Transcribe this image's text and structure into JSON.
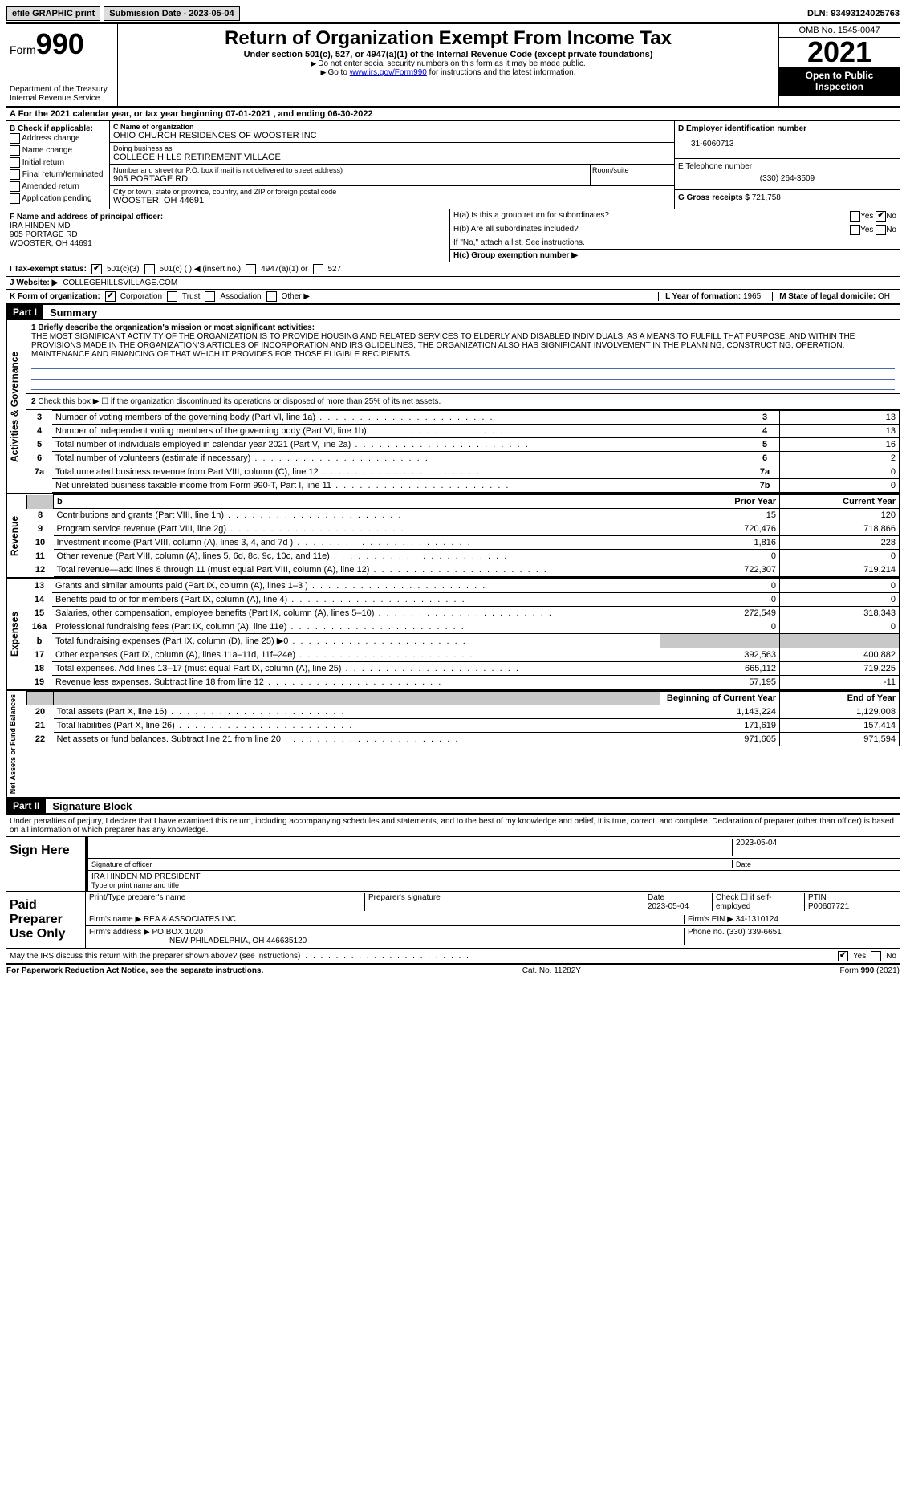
{
  "top": {
    "efile": "efile GRAPHIC print",
    "submission_label": "Submission Date - 2023-05-04",
    "dln": "DLN: 93493124025763"
  },
  "header": {
    "form_label": "Form",
    "form_no": "990",
    "dept": "Department of the Treasury",
    "irs": "Internal Revenue Service",
    "title": "Return of Organization Exempt From Income Tax",
    "subtitle": "Under section 501(c), 527, or 4947(a)(1) of the Internal Revenue Code (except private foundations)",
    "note1": "Do not enter social security numbers on this form as it may be made public.",
    "note2_pre": "Go to ",
    "note2_link": "www.irs.gov/Form990",
    "note2_post": " for instructions and the latest information.",
    "omb": "OMB No. 1545-0047",
    "year": "2021",
    "open": "Open to Public Inspection"
  },
  "row_a": "A For the 2021 calendar year, or tax year beginning 07-01-2021    , and ending 06-30-2022",
  "col_b": {
    "label": "B Check if applicable:",
    "opts": [
      "Address change",
      "Name change",
      "Initial return",
      "Final return/terminated",
      "Amended return",
      "Application pending"
    ]
  },
  "col_c": {
    "name_label": "C Name of organization",
    "name": "OHIO CHURCH RESIDENCES OF WOOSTER INC",
    "dba_label": "Doing business as",
    "dba": "COLLEGE HILLS RETIREMENT VILLAGE",
    "street_label": "Number and street (or P.O. box if mail is not delivered to street address)",
    "street": "905 PORTAGE RD",
    "room_label": "Room/suite",
    "city_label": "City or town, state or province, country, and ZIP or foreign postal code",
    "city": "WOOSTER, OH  44691"
  },
  "col_d": {
    "ein_label": "D Employer identification number",
    "ein": "31-6060713",
    "phone_label": "E Telephone number",
    "phone": "(330) 264-3509",
    "gross_label": "G Gross receipts $",
    "gross": "721,758"
  },
  "section_f": {
    "label": "F  Name and address of principal officer:",
    "name": "IRA HINDEN MD",
    "street": "905 PORTAGE RD",
    "city": "WOOSTER, OH  44691"
  },
  "section_h": {
    "ha": "H(a)  Is this a group return for subordinates?",
    "hb": "H(b)  Are all subordinates included?",
    "hb_note": "If \"No,\" attach a list. See instructions.",
    "hc": "H(c)  Group exemption number ▶",
    "yes": "Yes",
    "no": "No"
  },
  "row_i": {
    "label": "I  Tax-exempt status:",
    "o1": "501(c)(3)",
    "o2": "501(c) (  ) ◀ (insert no.)",
    "o3": "4947(a)(1) or",
    "o4": "527"
  },
  "row_j": {
    "label": "J   Website: ▶",
    "val": "COLLEGEHILLSVILLAGE.COM"
  },
  "row_k": {
    "label": "K Form of organization:",
    "o1": "Corporation",
    "o2": "Trust",
    "o3": "Association",
    "o4": "Other ▶"
  },
  "row_l": {
    "label": "L Year of formation: ",
    "val": "1965"
  },
  "row_m": {
    "label": "M State of legal domicile: ",
    "val": "OH"
  },
  "part1": {
    "label": "Part I",
    "title": "Summary",
    "line1_label": "1  Briefly describe the organization's mission or most significant activities:",
    "mission": "THE MOST SIGNIFICANT ACTIVITY OF THE ORGANIZATION IS TO PROVIDE HOUSING AND RELATED SERVICES TO ELDERLY AND DISABLED INDIVIDUALS. AS A MEANS TO FULFILL THAT PURPOSE, AND WITHIN THE PROVISIONS MADE IN THE ORGANIZATION'S ARTICLES OF INCORPORATION AND IRS GUIDELINES, THE ORGANIZATION ALSO HAS SIGNIFICANT INVOLVEMENT IN THE PLANNING, CONSTRUCTING, OPERATION, MAINTENANCE AND FINANCING OF THAT WHICH IT PROVIDES FOR THOSE ELIGIBLE RECIPIENTS.",
    "line2": "Check this box ▶ ☐  if the organization discontinued its operations or disposed of more than 25% of its net assets.",
    "gov_rows": [
      {
        "n": "3",
        "desc": "Number of voting members of the governing body (Part VI, line 1a)",
        "label": "3",
        "val": "13"
      },
      {
        "n": "4",
        "desc": "Number of independent voting members of the governing body (Part VI, line 1b)",
        "label": "4",
        "val": "13"
      },
      {
        "n": "5",
        "desc": "Total number of individuals employed in calendar year 2021 (Part V, line 2a)",
        "label": "5",
        "val": "16"
      },
      {
        "n": "6",
        "desc": "Total number of volunteers (estimate if necessary)",
        "label": "6",
        "val": "2"
      },
      {
        "n": "7a",
        "desc": "Total unrelated business revenue from Part VIII, column (C), line 12",
        "label": "7a",
        "val": "0"
      },
      {
        "n": "",
        "desc": "Net unrelated business taxable income from Form 990-T, Part I, line 11",
        "label": "7b",
        "val": "0"
      }
    ]
  },
  "fin": {
    "headers": {
      "b": "b",
      "prior": "Prior Year",
      "current": "Current Year"
    },
    "revenue": [
      {
        "n": "8",
        "desc": "Contributions and grants (Part VIII, line 1h)",
        "prior": "15",
        "curr": "120"
      },
      {
        "n": "9",
        "desc": "Program service revenue (Part VIII, line 2g)",
        "prior": "720,476",
        "curr": "718,866"
      },
      {
        "n": "10",
        "desc": "Investment income (Part VIII, column (A), lines 3, 4, and 7d )",
        "prior": "1,816",
        "curr": "228"
      },
      {
        "n": "11",
        "desc": "Other revenue (Part VIII, column (A), lines 5, 6d, 8c, 9c, 10c, and 11e)",
        "prior": "0",
        "curr": "0"
      },
      {
        "n": "12",
        "desc": "Total revenue—add lines 8 through 11 (must equal Part VIII, column (A), line 12)",
        "prior": "722,307",
        "curr": "719,214"
      }
    ],
    "expenses": [
      {
        "n": "13",
        "desc": "Grants and similar amounts paid (Part IX, column (A), lines 1–3 )",
        "prior": "0",
        "curr": "0"
      },
      {
        "n": "14",
        "desc": "Benefits paid to or for members (Part IX, column (A), line 4)",
        "prior": "0",
        "curr": "0"
      },
      {
        "n": "15",
        "desc": "Salaries, other compensation, employee benefits (Part IX, column (A), lines 5–10)",
        "prior": "272,549",
        "curr": "318,343"
      },
      {
        "n": "16a",
        "desc": "Professional fundraising fees (Part IX, column (A), line 11e)",
        "prior": "0",
        "curr": "0"
      },
      {
        "n": "b",
        "desc": "Total fundraising expenses (Part IX, column (D), line 25) ▶0",
        "prior": "shade",
        "curr": "shade"
      },
      {
        "n": "17",
        "desc": "Other expenses (Part IX, column (A), lines 11a–11d, 11f–24e)",
        "prior": "392,563",
        "curr": "400,882"
      },
      {
        "n": "18",
        "desc": "Total expenses. Add lines 13–17 (must equal Part IX, column (A), line 25)",
        "prior": "665,112",
        "curr": "719,225"
      },
      {
        "n": "19",
        "desc": "Revenue less expenses. Subtract line 18 from line 12",
        "prior": "57,195",
        "curr": "-11"
      }
    ],
    "net_headers": {
      "begin": "Beginning of Current Year",
      "end": "End of Year"
    },
    "net": [
      {
        "n": "20",
        "desc": "Total assets (Part X, line 16)",
        "prior": "1,143,224",
        "curr": "1,129,008"
      },
      {
        "n": "21",
        "desc": "Total liabilities (Part X, line 26)",
        "prior": "171,619",
        "curr": "157,414"
      },
      {
        "n": "22",
        "desc": "Net assets or fund balances. Subtract line 21 from line 20",
        "prior": "971,605",
        "curr": "971,594"
      }
    ]
  },
  "vert": {
    "gov": "Activities & Governance",
    "rev": "Revenue",
    "exp": "Expenses",
    "net": "Net Assets or Fund Balances"
  },
  "part2": {
    "label": "Part II",
    "title": "Signature Block",
    "perjury": "Under penalties of perjury, I declare that I have examined this return, including accompanying schedules and statements, and to the best of my knowledge and belief, it is true, correct, and complete. Declaration of preparer (other than officer) is based on all information of which preparer has any knowledge.",
    "sign_here": "Sign Here",
    "sig_officer": "Signature of officer",
    "date_label": "Date",
    "sig_date": "2023-05-04",
    "officer_name": "IRA HINDEN MD  PRESIDENT",
    "type_name": "Type or print name and title",
    "paid": "Paid Preparer Use Only",
    "prep_name_label": "Print/Type preparer's name",
    "prep_sig_label": "Preparer's signature",
    "prep_date": "2023-05-04",
    "check_self": "Check ☐ if self-employed",
    "ptin_label": "PTIN",
    "ptin": "P00607721",
    "firm_name_label": "Firm's name    ▶",
    "firm_name": "REA & ASSOCIATES INC",
    "firm_ein_label": "Firm's EIN ▶",
    "firm_ein": "34-1310124",
    "firm_addr_label": "Firm's address ▶",
    "firm_addr1": "PO BOX 1020",
    "firm_addr2": "NEW PHILADELPHIA, OH  446635120",
    "firm_phone_label": "Phone no.",
    "firm_phone": "(330) 339-6651",
    "may_irs": "May the IRS discuss this return with the preparer shown above? (see instructions)"
  },
  "footer": {
    "left": "For Paperwork Reduction Act Notice, see the separate instructions.",
    "mid": "Cat. No. 11282Y",
    "right": "Form 990 (2021)"
  }
}
